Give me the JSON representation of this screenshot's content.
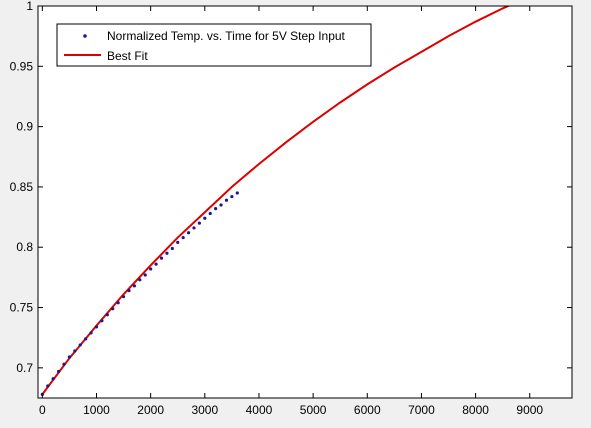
{
  "colors": {
    "figure_background": "#f0f0f0",
    "axes_background": "#ffffff",
    "data_marker": "#1a1a8c",
    "fit_line": "#dd0000"
  },
  "chart_data": {
    "type": "line",
    "title": "",
    "xlabel": "",
    "ylabel": "",
    "xlim": [
      -80,
      9780
    ],
    "ylim": [
      0.675,
      1.0
    ],
    "x_ticks": [
      0,
      1000,
      2000,
      3000,
      4000,
      5000,
      6000,
      7000,
      8000,
      9000
    ],
    "y_ticks": [
      0.7,
      0.75,
      0.8,
      0.85,
      0.9,
      0.95,
      1
    ],
    "x_tick_labels": [
      "0",
      "1000",
      "2000",
      "3000",
      "4000",
      "5000",
      "6000",
      "7000",
      "8000",
      "9000"
    ],
    "y_tick_labels": [
      "0.7",
      "0.75",
      "0.8",
      "0.85",
      "0.9",
      "0.95",
      "1"
    ],
    "grid": false,
    "legend": {
      "placement": "top-left",
      "entries": [
        "Normalized Temp. vs. Time for 5V Step Input",
        "Best Fit"
      ]
    },
    "series": [
      {
        "name": "Normalized Temp. vs. Time for 5V Step Input",
        "kind": "markers",
        "x": [
          0,
          100,
          200,
          300,
          400,
          500,
          600,
          700,
          800,
          900,
          1000,
          1100,
          1200,
          1300,
          1400,
          1500,
          1600,
          1700,
          1800,
          1900,
          2000,
          2100,
          2200,
          2300,
          2400,
          2500,
          2600,
          2700,
          2800,
          2900,
          3000,
          3100,
          3200,
          3300,
          3400,
          3500,
          3600
        ],
        "y": [
          0.678,
          0.685,
          0.691,
          0.697,
          0.703,
          0.709,
          0.714,
          0.719,
          0.724,
          0.729,
          0.734,
          0.739,
          0.744,
          0.749,
          0.754,
          0.759,
          0.764,
          0.768,
          0.773,
          0.777,
          0.782,
          0.786,
          0.791,
          0.795,
          0.799,
          0.804,
          0.808,
          0.812,
          0.816,
          0.82,
          0.824,
          0.828,
          0.832,
          0.835,
          0.839,
          0.842,
          0.845
        ]
      },
      {
        "name": "Best Fit",
        "kind": "line",
        "x": [
          0,
          500,
          1000,
          1500,
          2000,
          2500,
          3000,
          3500,
          4000,
          4500,
          5000,
          5500,
          6000,
          6500,
          7000,
          7500,
          8000,
          8500,
          9000,
          9500,
          9780
        ],
        "y": [
          0.678,
          0.708,
          0.735,
          0.761,
          0.785,
          0.808,
          0.829,
          0.85,
          0.869,
          0.887,
          0.904,
          0.92,
          0.935,
          0.949,
          0.962,
          0.975,
          0.987,
          0.998,
          1.008,
          1.017,
          1.0
        ]
      }
    ]
  }
}
